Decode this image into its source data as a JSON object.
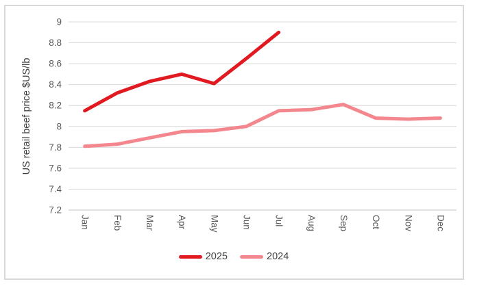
{
  "chart_data": {
    "type": "line",
    "title": "",
    "xlabel": "",
    "ylabel": "US retail beef price $US/lb",
    "categories": [
      "Jan",
      "Feb",
      "Mar",
      "Apr",
      "May",
      "Jun",
      "Jul",
      "Aug",
      "Sep",
      "Oct",
      "Nov",
      "Dec"
    ],
    "series": [
      {
        "name": "2025",
        "color": "#e01a20",
        "values": [
          8.15,
          8.32,
          8.43,
          8.5,
          8.41,
          8.65,
          8.9
        ]
      },
      {
        "name": "2024",
        "color": "#f3878d",
        "values": [
          7.81,
          7.83,
          7.89,
          7.95,
          7.96,
          8.0,
          8.15,
          8.16,
          8.21,
          8.08,
          8.07,
          8.08
        ]
      }
    ],
    "ylim": [
      7.2,
      9.0
    ],
    "ytick_step": 0.2,
    "grid": "horizontal",
    "legend_position": "bottom",
    "colors": {
      "gridline": "#d9d9d9",
      "axis_text": "#595959",
      "axis_title_text": "#404040",
      "legend_text": "#404040",
      "frame_border": "#d8d8d8",
      "background": "#ffffff"
    }
  }
}
